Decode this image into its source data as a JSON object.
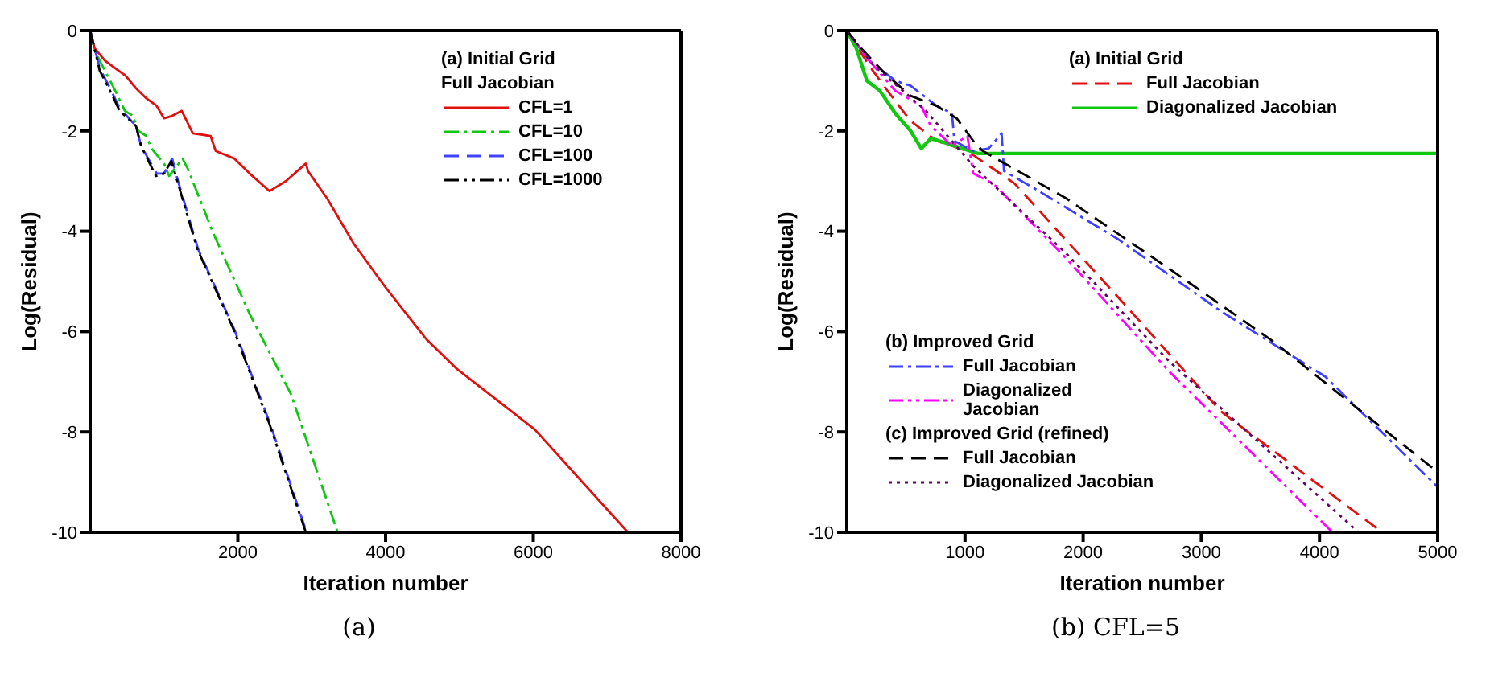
{
  "chart_data": [
    {
      "type": "line",
      "title": "(a)",
      "xlabel": "Iteration number",
      "ylabel": "Log(Residual)",
      "xlim": [
        0,
        8000
      ],
      "xticks": [
        2000,
        4000,
        6000,
        8000
      ],
      "ylim": [
        -10,
        0
      ],
      "yticks": [
        0,
        -2,
        -4,
        -6,
        -8,
        -10
      ],
      "grid": false,
      "legend": "top right",
      "annotations": [
        "(a)  Initial Grid\nFull Jacobian"
      ],
      "series": [
        {
          "name": "CFL=1",
          "color": "#e01010",
          "line_style": "solid",
          "x": [
            0,
            60,
            200,
            340,
            480,
            620,
            760,
            900,
            1000,
            1110,
            1240,
            1390,
            1630,
            1700,
            1950,
            2160,
            2430,
            2650,
            2920,
            2950,
            3210,
            3570,
            3990,
            4550,
            4970,
            6020,
            7280
          ],
          "values": [
            0,
            -0.35,
            -0.6,
            -0.75,
            -0.9,
            -1.15,
            -1.35,
            -1.5,
            -1.75,
            -1.7,
            -1.6,
            -2.05,
            -2.1,
            -2.4,
            -2.55,
            -2.85,
            -3.2,
            -3.0,
            -2.65,
            -2.8,
            -3.35,
            -4.25,
            -5.1,
            -6.15,
            -6.75,
            -7.95,
            -10
          ]
        },
        {
          "name": "CFL=10",
          "color": "#10c810",
          "line_style": "dashdot",
          "x": [
            0,
            60,
            200,
            340,
            470,
            580,
            650,
            760,
            830,
            1000,
            1070,
            1250,
            1320,
            1670,
            2160,
            2720,
            3350
          ],
          "values": [
            0,
            -0.4,
            -0.8,
            -1.2,
            -1.6,
            -1.7,
            -2.0,
            -2.1,
            -2.35,
            -2.65,
            -2.9,
            -2.55,
            -2.75,
            -4.05,
            -5.65,
            -7.25,
            -10
          ]
        },
        {
          "name": "CFL=100",
          "color": "#4040ff",
          "line_style": "dashed",
          "x": [
            0,
            130,
            270,
            400,
            620,
            690,
            900,
            1000,
            1110,
            1180,
            1460,
            1950,
            2440,
            2930
          ],
          "values": [
            0,
            -0.75,
            -1.15,
            -1.55,
            -1.9,
            -2.3,
            -2.85,
            -2.85,
            -2.55,
            -2.95,
            -4.35,
            -5.95,
            -7.85,
            -10
          ]
        },
        {
          "name": "CFL=1000",
          "color": "#000000",
          "line_style": "dashdotdot",
          "x": [
            0,
            130,
            270,
            400,
            620,
            690,
            890,
            1000,
            1100,
            1170,
            1450,
            1940,
            2430,
            2920
          ],
          "values": [
            0,
            -0.8,
            -1.2,
            -1.6,
            -1.9,
            -2.3,
            -2.9,
            -2.85,
            -2.6,
            -2.95,
            -4.35,
            -5.95,
            -7.85,
            -10
          ]
        }
      ]
    },
    {
      "type": "line",
      "title": "(b) CFL=5",
      "xlabel": "Iteration number",
      "ylabel": "Log(Residual)",
      "xlim": [
        0,
        5000
      ],
      "xticks": [
        1000,
        2000,
        3000,
        4000,
        5000
      ],
      "ylim": [
        -10,
        0
      ],
      "yticks": [
        0,
        -2,
        -4,
        -6,
        -8,
        -10
      ],
      "grid": false,
      "legend": "left",
      "annotations": [
        "(a)  Initial Grid",
        "(b)  Improved Grid",
        "(c)  Improved Grid (refined)"
      ],
      "series": [
        {
          "name": "Full Jacobian",
          "color": "#e01010",
          "line_style": "dashed",
          "x": [
            0,
            190,
            360,
            540,
            760,
            1020,
            1420,
            2290,
            3170,
            4530
          ],
          "values": [
            0,
            -0.7,
            -1.25,
            -1.8,
            -2.2,
            -2.4,
            -3.05,
            -5.3,
            -7.6,
            -10
          ]
        },
        {
          "name": "Diagonalized Jacobian",
          "color": "#10c810",
          "line_style": "solid",
          "x": [
            0,
            80,
            170,
            280,
            410,
            540,
            630,
            710,
            850,
            1110,
            5000
          ],
          "values": [
            0,
            -0.35,
            -1.0,
            -1.2,
            -1.65,
            -2.0,
            -2.35,
            -2.15,
            -2.25,
            -2.45,
            -2.45
          ]
        },
        {
          "name": "Full Jacobian",
          "color": "#4040ff",
          "line_style": "dashdot",
          "x": [
            0,
            190,
            410,
            540,
            760,
            890,
            910,
            1070,
            1200,
            1310,
            1330,
            1590,
            2290,
            3170,
            4050,
            5000
          ],
          "values": [
            0,
            -0.6,
            -1.0,
            -1.1,
            -1.5,
            -1.65,
            -2.2,
            -2.4,
            -2.35,
            -2.05,
            -2.8,
            -3.15,
            -4.15,
            -5.6,
            -6.9,
            -9.1
          ]
        },
        {
          "name": "Diagonalized Jacobian",
          "color": "#ff00ff",
          "line_style": "dashdotdot",
          "x": [
            0,
            190,
            410,
            630,
            710,
            890,
            1020,
            1070,
            1240,
            1860,
            2730,
            4110
          ],
          "values": [
            0,
            -0.6,
            -1.2,
            -1.5,
            -1.9,
            -2.3,
            -2.1,
            -2.85,
            -3.05,
            -4.55,
            -6.8,
            -10
          ]
        },
        {
          "name": "Full Jacobian",
          "color": "#000000",
          "line_style": "dashed",
          "x": [
            0,
            100,
            320,
            540,
            760,
            930,
            1070,
            1150,
            1860,
            2730,
            3610,
            5000
          ],
          "values": [
            0,
            -0.3,
            -0.85,
            -1.3,
            -1.5,
            -1.75,
            -2.2,
            -2.4,
            -3.35,
            -4.75,
            -6.2,
            -8.8
          ]
        },
        {
          "name": "Diagonalized Jacobian",
          "color": "#660066",
          "line_style": "dotted",
          "x": [
            0,
            230,
            670,
            1070,
            1860,
            2730,
            4330
          ],
          "values": [
            0,
            -0.7,
            -1.6,
            -2.7,
            -4.45,
            -6.6,
            -10
          ]
        }
      ]
    }
  ]
}
